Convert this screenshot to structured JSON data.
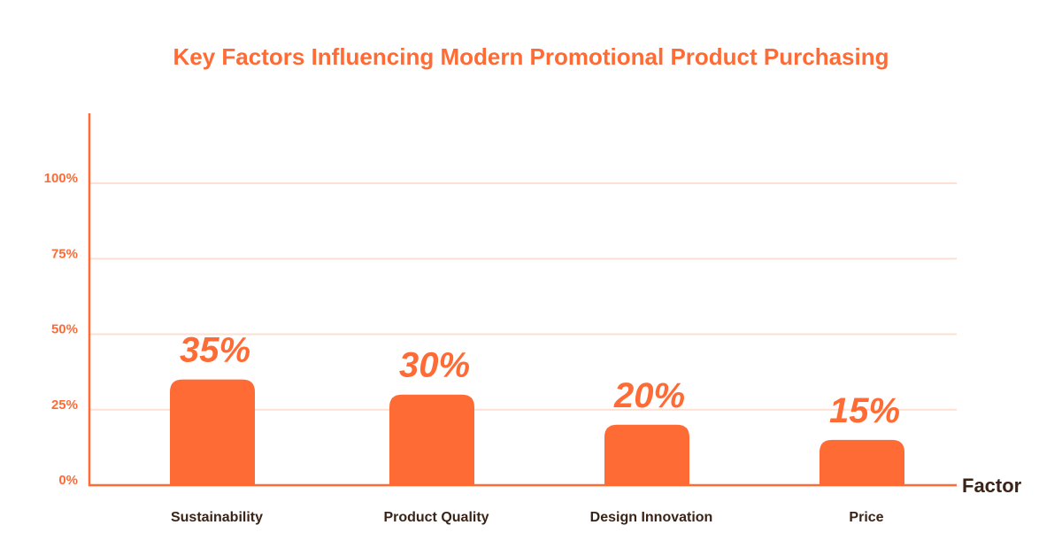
{
  "chart_data": {
    "type": "bar",
    "title": "Key Factors Influencing Modern Promotional Product Purchasing",
    "xlabel": "Factor",
    "ylabel": "",
    "categories": [
      "Sustainability",
      "Product Quality",
      "Design Innovation",
      "Price"
    ],
    "values": [
      35,
      30,
      20,
      15
    ],
    "data_labels": [
      "35%",
      "30%",
      "20%",
      "15%"
    ],
    "y_ticks": [
      0,
      25,
      50,
      75,
      100
    ],
    "y_tick_labels": [
      "0%",
      "25%",
      "50%",
      "75%",
      "100%"
    ],
    "ylim": [
      0,
      100
    ],
    "grid": true,
    "legend": false
  },
  "colors": {
    "bar": "#ff6b35",
    "accent": "#ff6b35",
    "gridline": "#fde0d3",
    "category_text": "#3a2418",
    "axis_label_text": "#3a2418"
  }
}
